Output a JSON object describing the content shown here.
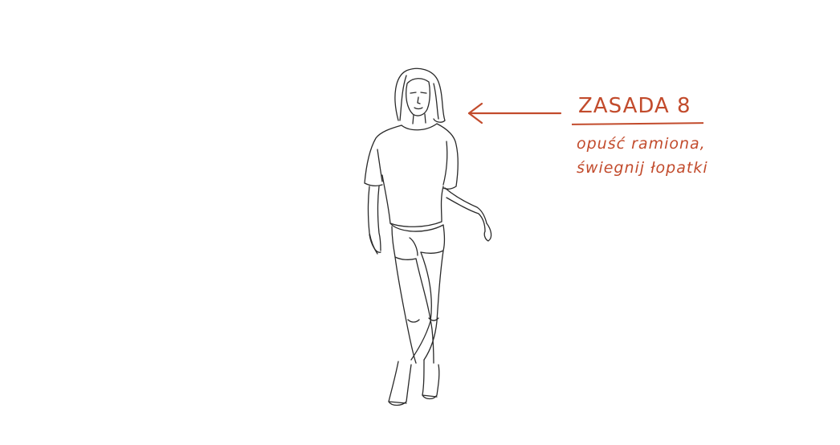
{
  "annotation": {
    "title": "ZASADA 8",
    "line1": "opuść ramiona,",
    "line2": "świegnij łopatki"
  },
  "colors": {
    "accent": "#c24b2c",
    "ink": "#2a2a2a",
    "background": "#ffffff"
  },
  "icons": {
    "arrow": "arrow-left-icon"
  }
}
